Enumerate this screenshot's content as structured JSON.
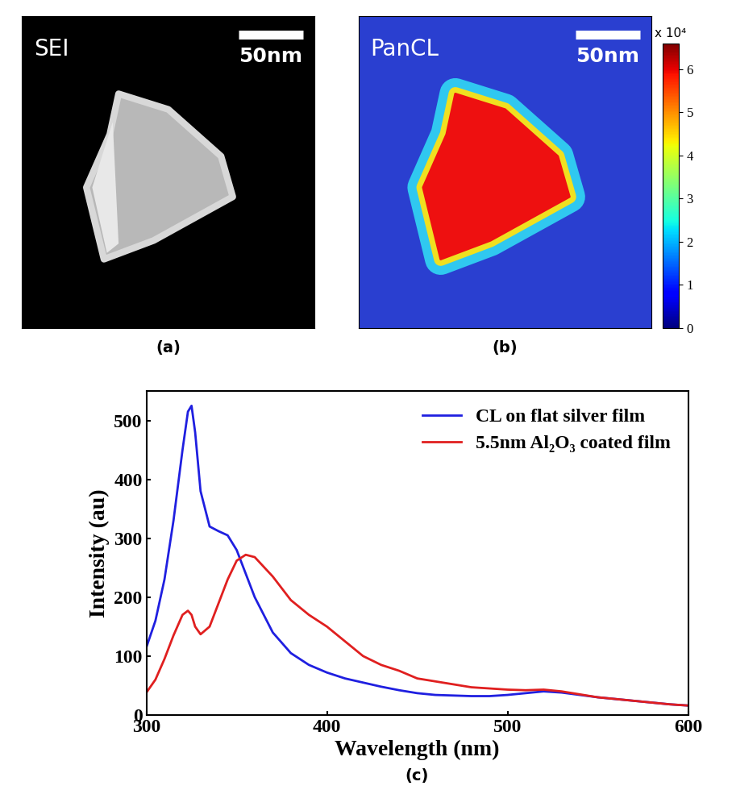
{
  "images": [
    {
      "label": "(a)",
      "text": "SEI",
      "scale_bar": "50nm"
    },
    {
      "label": "(b)",
      "text": "PanCL",
      "scale_bar": "50nm",
      "colorbar_label": "x 10⁴",
      "colorbar_lim": [
        0,
        6.6
      ],
      "colorbar_ticks": [
        0,
        1,
        2,
        3,
        4,
        5,
        6
      ]
    }
  ],
  "chart_data": {
    "type": "line",
    "label": "(c)",
    "x_label": "Wavelength (nm)",
    "y_label": "Intensity (au)",
    "xlim": [
      300,
      600
    ],
    "ylim": [
      0,
      550
    ],
    "xticks": [
      300,
      400,
      500,
      600
    ],
    "yticks": [
      0,
      100,
      200,
      300,
      400,
      500
    ],
    "legend": "upper right",
    "x": [
      300,
      305,
      310,
      315,
      320,
      323,
      325,
      327,
      330,
      335,
      340,
      345,
      350,
      355,
      360,
      370,
      380,
      390,
      400,
      410,
      420,
      430,
      440,
      450,
      460,
      470,
      480,
      490,
      500,
      510,
      520,
      530,
      540,
      550,
      560,
      570,
      580,
      590,
      600
    ],
    "series": [
      {
        "name": "CL on flat silver film",
        "color": "#1f1fe0",
        "values": [
          115,
          160,
          230,
          330,
          450,
          515,
          525,
          480,
          380,
          320,
          312,
          305,
          280,
          240,
          200,
          140,
          105,
          85,
          72,
          62,
          55,
          48,
          42,
          37,
          34,
          33,
          32,
          32,
          34,
          37,
          40,
          38,
          34,
          30,
          27,
          24,
          21,
          18,
          16
        ]
      },
      {
        "name": "5.5nm Al₂O₃ coated film",
        "color": "#e01f1f",
        "values": [
          38,
          60,
          95,
          135,
          170,
          177,
          170,
          150,
          137,
          150,
          190,
          230,
          262,
          272,
          268,
          235,
          195,
          170,
          150,
          125,
          100,
          85,
          75,
          62,
          57,
          52,
          47,
          45,
          43,
          42,
          43,
          40,
          35,
          30,
          27,
          24,
          21,
          18,
          16
        ]
      }
    ]
  }
}
